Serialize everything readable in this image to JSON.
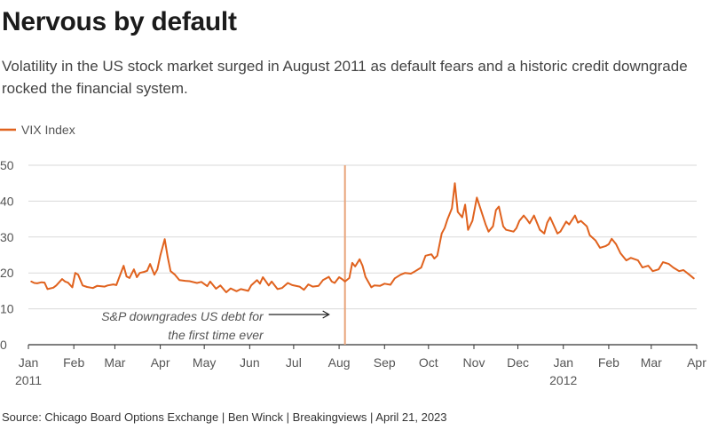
{
  "title": "Nervous by default",
  "subtitle": "Volatility in the US stock market surged in August 2011 as default fears and a historic credit downgrade rocked the financial system.",
  "source": "Source: Chicago Board Options Exchange | Ben Winck | Breakingviews | April 21, 2023",
  "colors": {
    "series": "#e0621e",
    "event_line": "#e8a47a",
    "grid": "#d9d9d9",
    "baseline": "#333333",
    "arrow": "#222222"
  },
  "chart_data": {
    "type": "line",
    "title": "Nervous by default",
    "xlabel": "",
    "ylabel": "",
    "ylim": [
      0,
      50
    ],
    "yticks": [
      0,
      10,
      20,
      30,
      40,
      50
    ],
    "grid": true,
    "legend_position": "top-left",
    "xticks": [
      {
        "date": "2011-01-01",
        "label": "Jan",
        "sublabel": "2011"
      },
      {
        "date": "2011-02-01",
        "label": "Feb"
      },
      {
        "date": "2011-03-01",
        "label": "Mar"
      },
      {
        "date": "2011-04-01",
        "label": "Apr"
      },
      {
        "date": "2011-05-01",
        "label": "May"
      },
      {
        "date": "2011-06-01",
        "label": "Jun"
      },
      {
        "date": "2011-07-01",
        "label": "Jul"
      },
      {
        "date": "2011-08-01",
        "label": "Aug"
      },
      {
        "date": "2011-09-01",
        "label": "Sep"
      },
      {
        "date": "2011-10-01",
        "label": "Oct"
      },
      {
        "date": "2011-11-01",
        "label": "Nov"
      },
      {
        "date": "2011-12-01",
        "label": "Dec"
      },
      {
        "date": "2012-01-01",
        "label": "Jan",
        "sublabel": "2012"
      },
      {
        "date": "2012-02-01",
        "label": "Feb"
      },
      {
        "date": "2012-03-01",
        "label": "Mar"
      },
      {
        "date": "2012-04-01",
        "label": "Apr"
      }
    ],
    "annotation": {
      "date": "2011-08-05",
      "lines": [
        "S&P downgrades US debt for",
        "the first time ever"
      ]
    },
    "series": [
      {
        "name": "VIX Index",
        "points": [
          [
            "2011-01-03",
            17.6
          ],
          [
            "2011-01-05",
            17.2
          ],
          [
            "2011-01-07",
            17.1
          ],
          [
            "2011-01-10",
            17.4
          ],
          [
            "2011-01-12",
            17.3
          ],
          [
            "2011-01-14",
            15.5
          ],
          [
            "2011-01-18",
            15.9
          ],
          [
            "2011-01-20",
            16.5
          ],
          [
            "2011-01-24",
            18.3
          ],
          [
            "2011-01-26",
            17.6
          ],
          [
            "2011-01-28",
            17.3
          ],
          [
            "2011-01-31",
            16.0
          ],
          [
            "2011-02-02",
            20.0
          ],
          [
            "2011-02-04",
            19.5
          ],
          [
            "2011-02-07",
            16.5
          ],
          [
            "2011-02-10",
            16.1
          ],
          [
            "2011-02-14",
            15.8
          ],
          [
            "2011-02-17",
            16.4
          ],
          [
            "2011-02-22",
            16.2
          ],
          [
            "2011-02-24",
            16.5
          ],
          [
            "2011-02-28",
            16.8
          ],
          [
            "2011-03-02",
            16.6
          ],
          [
            "2011-03-04",
            18.8
          ],
          [
            "2011-03-07",
            22.0
          ],
          [
            "2011-03-09",
            19.0
          ],
          [
            "2011-03-11",
            18.6
          ],
          [
            "2011-03-14",
            21.0
          ],
          [
            "2011-03-16",
            18.8
          ],
          [
            "2011-03-18",
            20.0
          ],
          [
            "2011-03-21",
            20.3
          ],
          [
            "2011-03-23",
            20.6
          ],
          [
            "2011-03-25",
            22.5
          ],
          [
            "2011-03-28",
            19.5
          ],
          [
            "2011-03-30",
            21.0
          ],
          [
            "2011-04-01",
            24.8
          ],
          [
            "2011-04-04",
            29.4
          ],
          [
            "2011-04-06",
            24.5
          ],
          [
            "2011-04-08",
            20.5
          ],
          [
            "2011-04-11",
            19.5
          ],
          [
            "2011-04-14",
            18.0
          ],
          [
            "2011-04-18",
            17.8
          ],
          [
            "2011-04-21",
            17.7
          ],
          [
            "2011-04-26",
            17.2
          ],
          [
            "2011-04-29",
            17.5
          ],
          [
            "2011-05-03",
            16.3
          ],
          [
            "2011-05-05",
            17.6
          ],
          [
            "2011-05-09",
            15.6
          ],
          [
            "2011-05-12",
            16.5
          ],
          [
            "2011-05-16",
            14.6
          ],
          [
            "2011-05-19",
            15.7
          ],
          [
            "2011-05-23",
            14.9
          ],
          [
            "2011-05-26",
            15.5
          ],
          [
            "2011-05-31",
            15.0
          ],
          [
            "2011-06-02",
            16.5
          ],
          [
            "2011-06-06",
            18.0
          ],
          [
            "2011-06-08",
            17.0
          ],
          [
            "2011-06-10",
            18.8
          ],
          [
            "2011-06-14",
            16.5
          ],
          [
            "2011-06-16",
            17.6
          ],
          [
            "2011-06-20",
            15.5
          ],
          [
            "2011-06-23",
            15.8
          ],
          [
            "2011-06-27",
            17.2
          ],
          [
            "2011-06-30",
            16.6
          ],
          [
            "2011-07-05",
            16.2
          ],
          [
            "2011-07-08",
            15.3
          ],
          [
            "2011-07-11",
            16.8
          ],
          [
            "2011-07-14",
            16.2
          ],
          [
            "2011-07-18",
            16.4
          ],
          [
            "2011-07-21",
            18.0
          ],
          [
            "2011-07-25",
            18.9
          ],
          [
            "2011-07-27",
            17.6
          ],
          [
            "2011-07-29",
            17.2
          ],
          [
            "2011-08-01",
            18.8
          ],
          [
            "2011-08-03",
            18.3
          ],
          [
            "2011-08-05",
            17.6
          ],
          [
            "2011-08-08",
            18.6
          ],
          [
            "2011-08-10",
            22.8
          ],
          [
            "2011-08-12",
            21.8
          ],
          [
            "2011-08-15",
            23.8
          ],
          [
            "2011-08-17",
            22.0
          ],
          [
            "2011-08-19",
            18.9
          ],
          [
            "2011-08-23",
            16.0
          ],
          [
            "2011-08-25",
            16.5
          ],
          [
            "2011-08-29",
            16.4
          ],
          [
            "2011-09-01",
            17.0
          ],
          [
            "2011-09-05",
            16.7
          ],
          [
            "2011-09-08",
            18.5
          ],
          [
            "2011-09-12",
            19.5
          ],
          [
            "2011-09-15",
            20.0
          ],
          [
            "2011-09-19",
            19.8
          ],
          [
            "2011-09-22",
            20.5
          ],
          [
            "2011-09-26",
            21.5
          ],
          [
            "2011-09-29",
            24.8
          ],
          [
            "2011-10-03",
            25.2
          ],
          [
            "2011-10-05",
            24.0
          ],
          [
            "2011-10-07",
            24.8
          ],
          [
            "2011-10-10",
            31.0
          ],
          [
            "2011-10-12",
            32.5
          ],
          [
            "2011-10-14",
            35.0
          ],
          [
            "2011-10-17",
            38.0
          ],
          [
            "2011-10-19",
            45.0
          ],
          [
            "2011-10-21",
            37.0
          ],
          [
            "2011-10-24",
            35.5
          ],
          [
            "2011-10-26",
            39.0
          ],
          [
            "2011-10-28",
            32.0
          ],
          [
            "2011-10-31",
            34.5
          ],
          [
            "2011-11-03",
            41.0
          ],
          [
            "2011-11-07",
            36.0
          ],
          [
            "2011-11-09",
            33.5
          ],
          [
            "2011-11-11",
            31.5
          ],
          [
            "2011-11-14",
            33.0
          ],
          [
            "2011-11-16",
            37.5
          ],
          [
            "2011-11-18",
            38.5
          ],
          [
            "2011-11-21",
            33.0
          ],
          [
            "2011-11-23",
            32.0
          ],
          [
            "2011-11-28",
            31.5
          ],
          [
            "2011-11-30",
            32.5
          ],
          [
            "2011-12-02",
            34.5
          ],
          [
            "2011-12-05",
            36.0
          ],
          [
            "2011-12-07",
            35.0
          ],
          [
            "2011-12-09",
            33.8
          ],
          [
            "2011-12-12",
            36.0
          ],
          [
            "2011-12-14",
            34.0
          ],
          [
            "2011-12-16",
            32.0
          ],
          [
            "2011-12-19",
            31.0
          ],
          [
            "2011-12-21",
            34.0
          ],
          [
            "2011-12-23",
            35.5
          ],
          [
            "2011-12-28",
            31.0
          ],
          [
            "2011-12-30",
            31.5
          ],
          [
            "2012-01-03",
            34.3
          ],
          [
            "2012-01-05",
            33.5
          ],
          [
            "2012-01-09",
            36.0
          ],
          [
            "2012-01-11",
            34.0
          ],
          [
            "2012-01-13",
            34.5
          ],
          [
            "2012-01-17",
            33.0
          ],
          [
            "2012-01-19",
            30.5
          ],
          [
            "2012-01-23",
            29.0
          ],
          [
            "2012-01-26",
            27.0
          ],
          [
            "2012-01-30",
            27.5
          ],
          [
            "2012-02-01",
            28.0
          ],
          [
            "2012-02-03",
            29.5
          ],
          [
            "2012-02-06",
            28.0
          ],
          [
            "2012-02-09",
            25.5
          ],
          [
            "2012-02-13",
            23.5
          ],
          [
            "2012-02-16",
            24.2
          ],
          [
            "2012-02-21",
            23.5
          ],
          [
            "2012-02-24",
            21.5
          ],
          [
            "2012-02-28",
            22.0
          ],
          [
            "2012-03-02",
            20.5
          ],
          [
            "2012-03-06",
            21.0
          ],
          [
            "2012-03-09",
            23.0
          ],
          [
            "2012-03-13",
            22.5
          ],
          [
            "2012-03-16",
            21.5
          ],
          [
            "2012-03-20",
            20.5
          ],
          [
            "2012-03-23",
            20.8
          ],
          [
            "2012-03-27",
            19.5
          ],
          [
            "2012-03-30",
            18.5
          ]
        ]
      }
    ]
  }
}
